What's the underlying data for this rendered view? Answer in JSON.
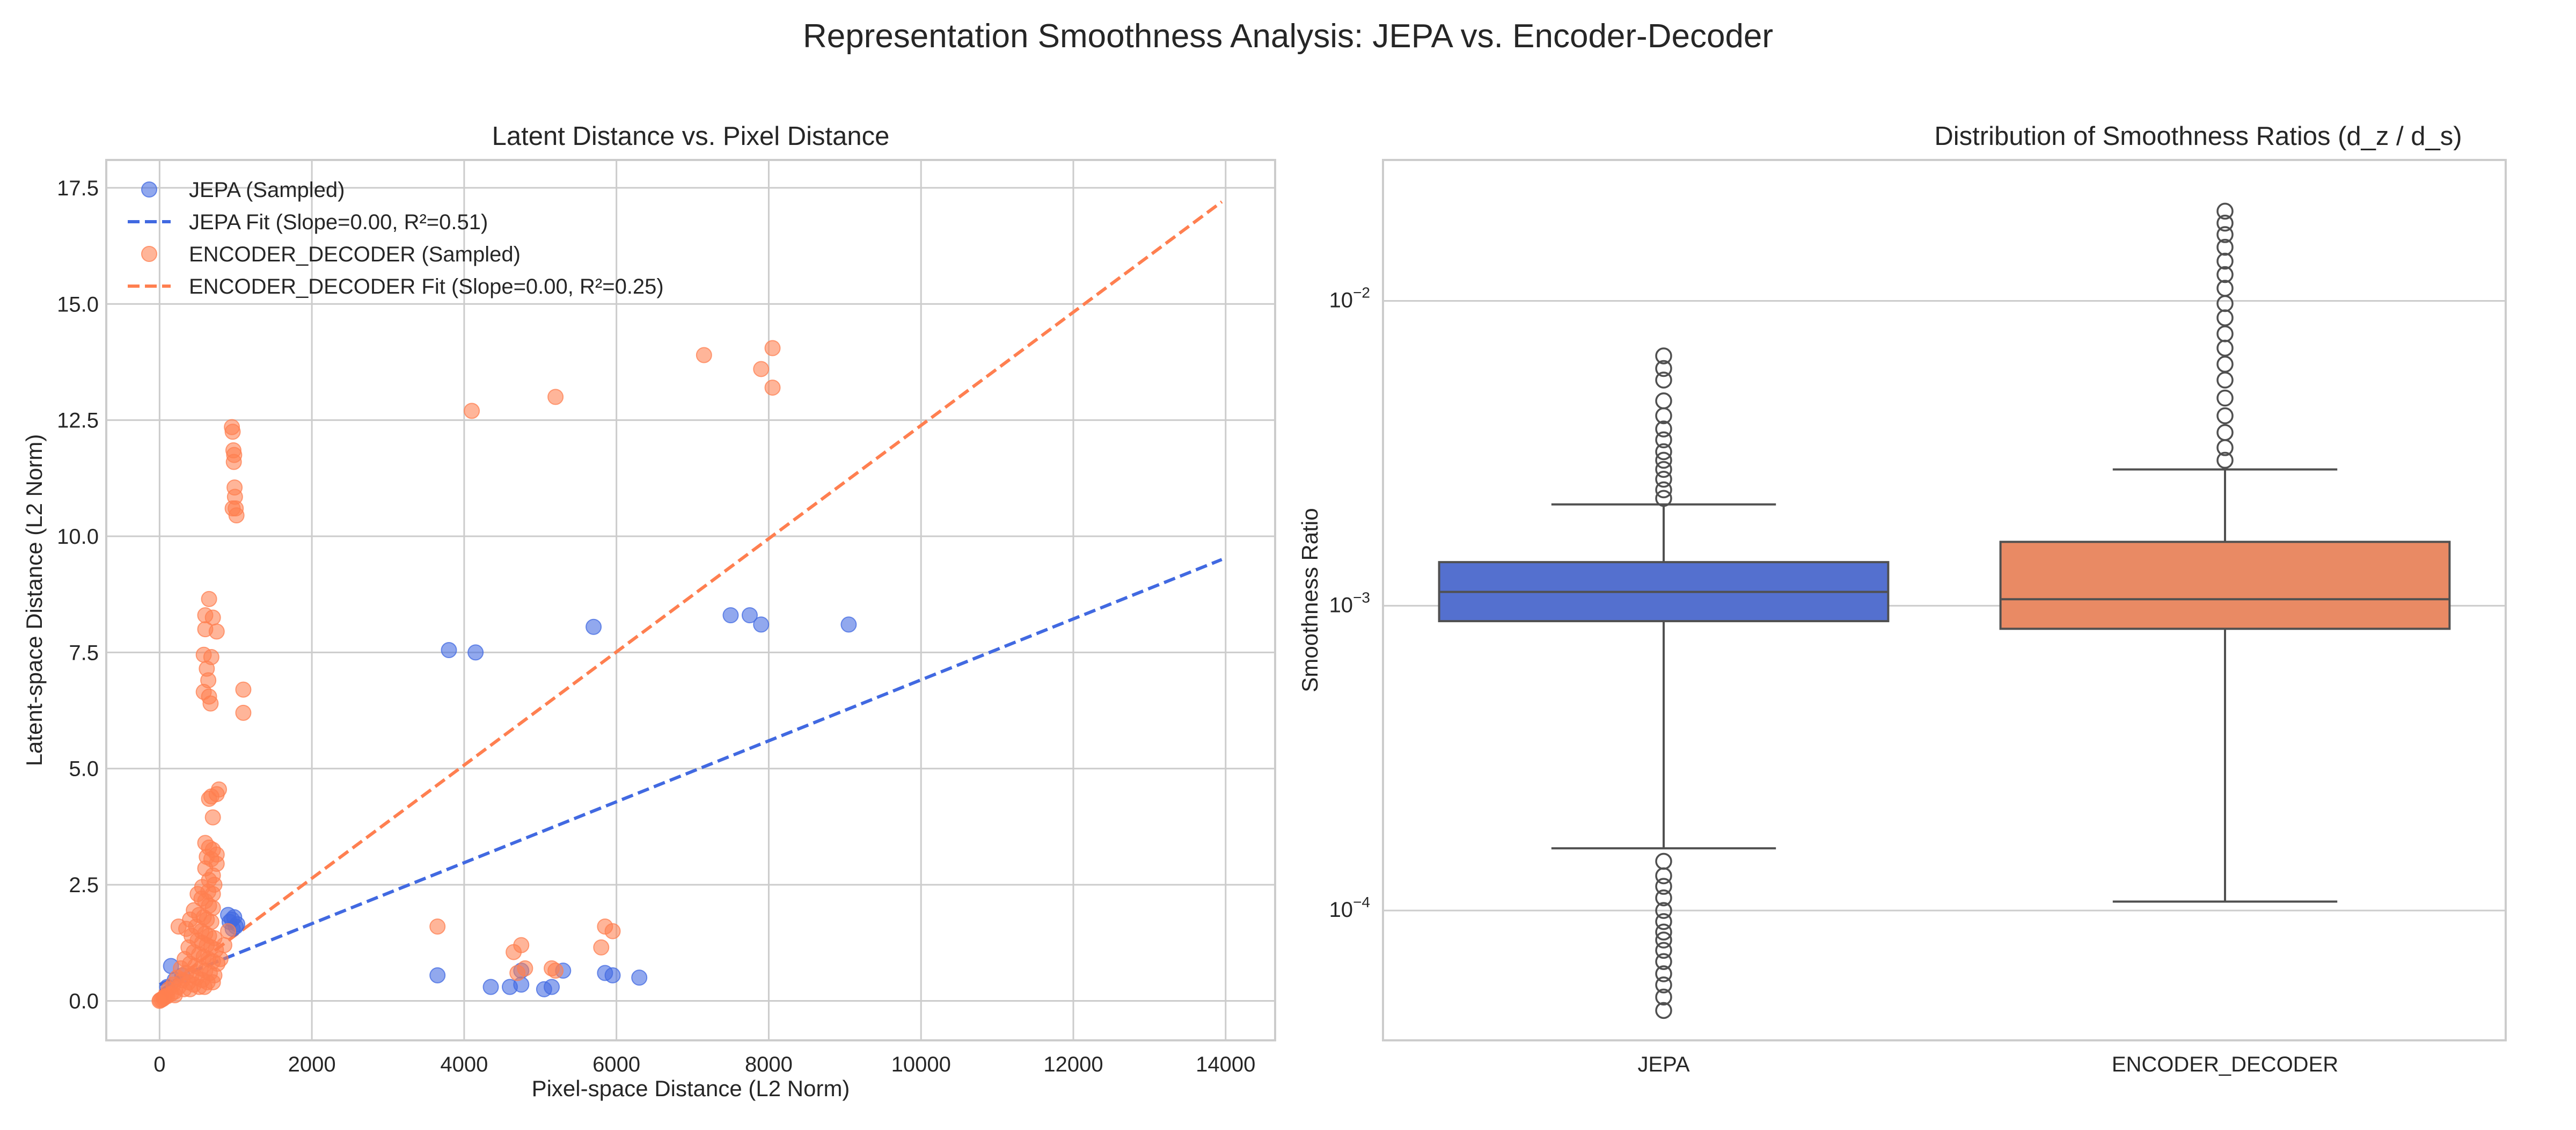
{
  "figure": {
    "suptitle": "Representation Smoothness Analysis: JEPA vs. Encoder-Decoder"
  },
  "colors": {
    "jepa": "#4169e1",
    "encoder_decoder": "#ff7f50",
    "jepa_box": "#5470cf",
    "encoder_decoder_box": "#e98a64",
    "grid": "#cccccc",
    "box_line": "#505050"
  },
  "chart_data": [
    {
      "type": "scatter",
      "title": "Latent Distance vs. Pixel Distance",
      "xlabel": "Pixel-space Distance (L2 Norm)",
      "ylabel": "Latent-space Distance (L2 Norm)",
      "xlim": [
        -700,
        14650
      ],
      "ylim": [
        -0.85,
        18.1
      ],
      "xticks": [
        0,
        2000,
        4000,
        6000,
        8000,
        10000,
        12000,
        14000
      ],
      "xtick_labels": [
        "0",
        "2000",
        "4000",
        "6000",
        "8000",
        "10000",
        "12000",
        "14000"
      ],
      "yticks": [
        0,
        2.5,
        5,
        7.5,
        10,
        12.5,
        15,
        17.5
      ],
      "ytick_labels": [
        "0.0",
        "2.5",
        "5.0",
        "7.5",
        "10.0",
        "12.5",
        "15.0",
        "17.5"
      ],
      "grid": true,
      "legend_position": "top-left",
      "legend": [
        "JEPA (Sampled)",
        "JEPA Fit (Slope=0.00, R²=0.51)",
        "ENCODER_DECODER (Sampled)",
        "ENCODER_DECODER Fit (Slope=0.00, R²=0.25)"
      ],
      "series": [
        {
          "name": "JEPA (Sampled)",
          "kind": "points",
          "points": [
            [
              3800,
              7.55
            ],
            [
              4150,
              7.5
            ],
            [
              5700,
              8.05
            ],
            [
              7500,
              8.3
            ],
            [
              7750,
              8.3
            ],
            [
              7900,
              8.1
            ],
            [
              9050,
              8.1
            ],
            [
              3650,
              0.55
            ],
            [
              4350,
              0.3
            ],
            [
              4600,
              0.3
            ],
            [
              4750,
              0.35
            ],
            [
              4750,
              0.65
            ],
            [
              5050,
              0.25
            ],
            [
              5150,
              0.3
            ],
            [
              5300,
              0.65
            ],
            [
              5850,
              0.6
            ],
            [
              5950,
              0.55
            ],
            [
              6300,
              0.5
            ],
            [
              150,
              0.75
            ],
            [
              100,
              0.3
            ],
            [
              200,
              0.45
            ],
            [
              300,
              0.55
            ],
            [
              900,
              1.85
            ],
            [
              950,
              1.75
            ],
            [
              1000,
              1.6
            ],
            [
              920,
              1.7
            ],
            [
              980,
              1.8
            ],
            [
              1020,
              1.65
            ],
            [
              960,
              1.55
            ]
          ]
        },
        {
          "name": "JEPA Fit (Slope=0.00, R²=0.51)",
          "kind": "line",
          "points": [
            [
              0,
              0.35
            ],
            [
              13950,
              9.5
            ]
          ]
        },
        {
          "name": "ENCODER_DECODER (Sampled)",
          "kind": "points",
          "points": [
            [
              4100,
              12.7
            ],
            [
              5200,
              13.0
            ],
            [
              7150,
              13.9
            ],
            [
              7900,
              13.6
            ],
            [
              8050,
              14.05
            ],
            [
              8050,
              13.2
            ],
            [
              950,
              12.35
            ],
            [
              960,
              12.25
            ],
            [
              970,
              11.85
            ],
            [
              980,
              11.75
            ],
            [
              975,
              11.6
            ],
            [
              985,
              11.05
            ],
            [
              990,
              10.85
            ],
            [
              960,
              10.6
            ],
            [
              1000,
              10.6
            ],
            [
              1010,
              10.45
            ],
            [
              650,
              8.65
            ],
            [
              600,
              8.3
            ],
            [
              700,
              8.25
            ],
            [
              600,
              8.0
            ],
            [
              750,
              7.95
            ],
            [
              580,
              7.45
            ],
            [
              680,
              7.4
            ],
            [
              620,
              7.15
            ],
            [
              640,
              6.9
            ],
            [
              580,
              6.65
            ],
            [
              650,
              6.55
            ],
            [
              670,
              6.4
            ],
            [
              1100,
              6.7
            ],
            [
              1100,
              6.2
            ],
            [
              780,
              4.55
            ],
            [
              750,
              4.45
            ],
            [
              680,
              4.4
            ],
            [
              650,
              4.35
            ],
            [
              700,
              3.95
            ],
            [
              600,
              3.4
            ],
            [
              650,
              3.3
            ],
            [
              700,
              3.25
            ],
            [
              750,
              3.15
            ],
            [
              620,
              3.1
            ],
            [
              680,
              3.05
            ],
            [
              750,
              2.95
            ],
            [
              600,
              2.85
            ],
            [
              700,
              2.7
            ],
            [
              650,
              2.6
            ],
            [
              720,
              2.5
            ],
            [
              560,
              2.45
            ],
            [
              640,
              2.35
            ],
            [
              700,
              2.3
            ],
            [
              500,
              2.3
            ],
            [
              550,
              2.2
            ],
            [
              600,
              2.15
            ],
            [
              650,
              2.05
            ],
            [
              700,
              2.0
            ],
            [
              450,
              1.95
            ],
            [
              520,
              1.85
            ],
            [
              580,
              1.8
            ],
            [
              620,
              1.75
            ],
            [
              680,
              1.7
            ],
            [
              400,
              1.75
            ],
            [
              250,
              1.6
            ],
            [
              350,
              1.55
            ],
            [
              480,
              1.6
            ],
            [
              550,
              1.5
            ],
            [
              600,
              1.45
            ],
            [
              650,
              1.4
            ],
            [
              720,
              1.35
            ],
            [
              420,
              1.4
            ],
            [
              500,
              1.3
            ],
            [
              560,
              1.25
            ],
            [
              620,
              1.2
            ],
            [
              680,
              1.15
            ],
            [
              740,
              1.1
            ],
            [
              380,
              1.15
            ],
            [
              450,
              1.05
            ],
            [
              520,
              1.0
            ],
            [
              580,
              0.95
            ],
            [
              640,
              0.9
            ],
            [
              700,
              0.85
            ],
            [
              760,
              0.8
            ],
            [
              330,
              0.9
            ],
            [
              400,
              0.8
            ],
            [
              470,
              0.75
            ],
            [
              540,
              0.7
            ],
            [
              600,
              0.65
            ],
            [
              660,
              0.6
            ],
            [
              720,
              0.55
            ],
            [
              280,
              0.7
            ],
            [
              350,
              0.6
            ],
            [
              420,
              0.55
            ],
            [
              490,
              0.5
            ],
            [
              560,
              0.45
            ],
            [
              630,
              0.4
            ],
            [
              700,
              0.4
            ],
            [
              230,
              0.5
            ],
            [
              300,
              0.45
            ],
            [
              380,
              0.4
            ],
            [
              450,
              0.35
            ],
            [
              520,
              0.3
            ],
            [
              590,
              0.3
            ],
            [
              180,
              0.35
            ],
            [
              250,
              0.3
            ],
            [
              320,
              0.25
            ],
            [
              400,
              0.25
            ],
            [
              120,
              0.25
            ],
            [
              200,
              0.2
            ],
            [
              150,
              0.15
            ],
            [
              100,
              0.1
            ],
            [
              80,
              0.1
            ],
            [
              50,
              0.05
            ],
            [
              30,
              0.03
            ],
            [
              10,
              0.02
            ],
            [
              0,
              0.0
            ],
            [
              60,
              0.08
            ],
            [
              200,
              0.12
            ],
            [
              900,
              1.5
            ],
            [
              850,
              1.2
            ],
            [
              800,
              0.9
            ],
            [
              3650,
              1.6
            ],
            [
              4650,
              1.05
            ],
            [
              4750,
              1.2
            ],
            [
              4800,
              0.7
            ],
            [
              5150,
              0.7
            ],
            [
              5200,
              0.65
            ],
            [
              5800,
              1.15
            ],
            [
              5850,
              1.6
            ],
            [
              5950,
              1.5
            ],
            [
              4700,
              0.6
            ]
          ]
        },
        {
          "name": "ENCODER_DECODER Fit (Slope=0.00, R²=0.25)",
          "kind": "line",
          "points": [
            [
              0,
              0.2
            ],
            [
              13950,
              17.2
            ]
          ]
        }
      ]
    },
    {
      "type": "box",
      "title": "Distribution of Smoothness Ratios (d_z / d_s)",
      "xlabel": "",
      "ylabel": "Smoothness Ratio",
      "yscale": "log",
      "ylim": [
        3.75e-05,
        0.029
      ],
      "yticks": [
        0.0001,
        0.001,
        0.01
      ],
      "ytick_labels": [
        {
          "base": "10",
          "exp": "−4"
        },
        {
          "base": "10",
          "exp": "−3"
        },
        {
          "base": "10",
          "exp": "−2"
        }
      ],
      "categories": [
        "JEPA",
        "ENCODER_DECODER"
      ],
      "grid": true,
      "boxes": [
        {
          "name": "JEPA",
          "whisker_low": 0.00016,
          "q1": 0.00089,
          "median": 0.00111,
          "q3": 0.00139,
          "whisker_high": 0.00215,
          "outliers_high": [
            0.00225,
            0.0024,
            0.0026,
            0.0028,
            0.003,
            0.0032,
            0.0035,
            0.0038,
            0.0042,
            0.0047,
            0.0055,
            0.006,
            0.0066
          ],
          "outliers_low": [
            0.000145,
            0.00013,
            0.00012,
            0.00011,
            0.0001,
            9.2e-05,
            8.5e-05,
            8e-05,
            7.4e-05,
            6.8e-05,
            6.2e-05,
            5.7e-05,
            5.2e-05,
            4.7e-05
          ]
        },
        {
          "name": "ENCODER_DECODER",
          "whisker_low": 0.000107,
          "q1": 0.00084,
          "median": 0.00105,
          "q3": 0.00162,
          "whisker_high": 0.0028,
          "outliers_high": [
            0.003,
            0.0033,
            0.0037,
            0.0042,
            0.0048,
            0.0055,
            0.0062,
            0.007,
            0.0078,
            0.0088,
            0.0098,
            0.011,
            0.0122,
            0.0135,
            0.015,
            0.0165,
            0.018,
            0.0197
          ],
          "outliers_low": []
        }
      ]
    }
  ]
}
